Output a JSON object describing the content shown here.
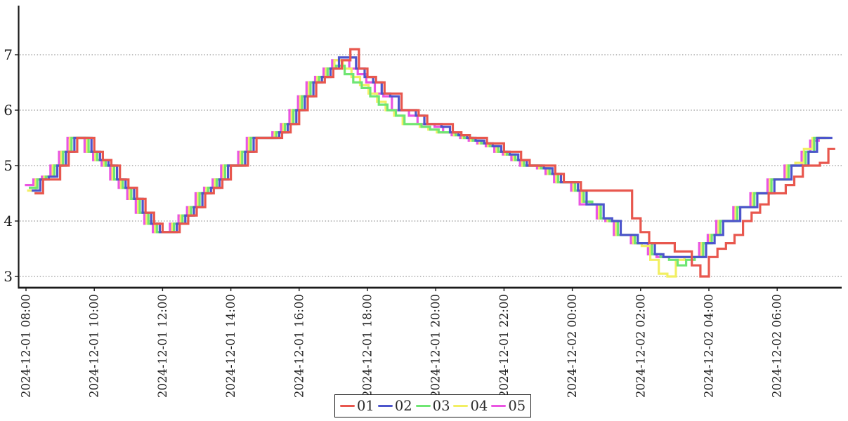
{
  "chart_data": {
    "type": "line",
    "subtype": "step",
    "title": "",
    "xlabel": "",
    "ylabel": "",
    "x_start": "2024-12-01 08:15",
    "x_step_minutes": 15,
    "x_end": "2024-12-02 07:30",
    "y_axis": {
      "ticks": [
        7,
        6,
        5,
        4,
        3
      ],
      "tick_labels": [
        "7",
        "6",
        "5",
        "4",
        "3"
      ],
      "range_shown": [
        2.8,
        7.9
      ],
      "gridlines": "dotted"
    },
    "x_axis": {
      "tick_interval_hours": 2,
      "tick_labels": [
        "2024-12-01 08:00",
        "2024-12-01 10:00",
        "2024-12-01 12:00",
        "2024-12-01 14:00",
        "2024-12-01 16:00",
        "2024-12-01 18:00",
        "2024-12-01 20:00",
        "2024-12-01 22:00",
        "2024-12-02 00:00",
        "2024-12-02 02:00",
        "2024-12-02 04:00",
        "2024-12-02 06:00"
      ],
      "label_rotation_deg": -90
    },
    "colors": {
      "grid": "#999999",
      "axis": "#1a1a1a",
      "background": "#ffffff",
      "tick_text": "#1a1a1a"
    },
    "legend": {
      "position": "bottom-center",
      "border": true,
      "entries": [
        {
          "label": "01",
          "color": "#e8574e"
        },
        {
          "label": "02",
          "color": "#4c55cc"
        },
        {
          "label": "03",
          "color": "#6fe673"
        },
        {
          "label": "04",
          "color": "#f2ef63"
        },
        {
          "label": "05",
          "color": "#ea55e2"
        }
      ]
    },
    "series": [
      {
        "name": "01",
        "color": "#e8574e",
        "offset_minutes": 0,
        "values": [
          4.5,
          4.75,
          4.75,
          5,
          5.25,
          5.5,
          5.5,
          5.25,
          5.1,
          5,
          4.75,
          4.6,
          4.4,
          4.15,
          3.95,
          3.8,
          3.8,
          3.95,
          4.1,
          4.25,
          4.5,
          4.6,
          4.75,
          5,
          5,
          5.25,
          5.5,
          5.5,
          5.5,
          5.6,
          5.75,
          6,
          6.25,
          6.5,
          6.6,
          6.75,
          6.9,
          7.1,
          6.75,
          6.6,
          6.5,
          6.3,
          6.3,
          6,
          6,
          5.9,
          5.75,
          5.75,
          5.75,
          5.6,
          5.55,
          5.5,
          5.5,
          5.4,
          5.4,
          5.25,
          5.25,
          5.1,
          5,
          5,
          5,
          4.85,
          4.7,
          4.7,
          4.55,
          4.55,
          4.55,
          4.55,
          4.55,
          4.55,
          4.05,
          3.8,
          3.6,
          3.6,
          3.6,
          3.45,
          3.45,
          3.2,
          3,
          3.35,
          3.5,
          3.6,
          3.75,
          4,
          4.15,
          4.3,
          4.5,
          4.5,
          4.65,
          4.8,
          5,
          5,
          5.05,
          5.3
        ]
      },
      {
        "name": "02",
        "color": "#4c55cc",
        "offset_minutes": -5,
        "values": [
          4.55,
          4.75,
          4.8,
          5,
          5.25,
          5.5,
          5.5,
          5.25,
          5.1,
          5,
          4.75,
          4.6,
          4.4,
          4.15,
          3.95,
          3.8,
          3.8,
          3.95,
          4.1,
          4.25,
          4.5,
          4.6,
          4.75,
          5,
          5,
          5.25,
          5.5,
          5.5,
          5.5,
          5.6,
          5.75,
          6,
          6.25,
          6.5,
          6.6,
          6.75,
          6.95,
          6.95,
          6.75,
          6.6,
          6.5,
          6.3,
          6.25,
          6,
          6,
          5.9,
          5.75,
          5.75,
          5.7,
          5.6,
          5.55,
          5.5,
          5.45,
          5.4,
          5.35,
          5.25,
          5.2,
          5.1,
          5,
          5,
          4.95,
          4.85,
          4.7,
          4.7,
          4.55,
          4.3,
          4.3,
          4.05,
          4,
          3.75,
          3.75,
          3.6,
          3.6,
          3.4,
          3.35,
          3.35,
          3.35,
          3.35,
          3.35,
          3.6,
          3.75,
          4,
          4,
          4.25,
          4.25,
          4.5,
          4.5,
          4.75,
          4.75,
          5,
          5,
          5.25,
          5.5,
          5.5
        ]
      },
      {
        "name": "03",
        "color": "#6fe673",
        "offset_minutes": -10,
        "values": [
          4.6,
          4.75,
          4.8,
          5,
          5.25,
          5.5,
          5.5,
          5.25,
          5.1,
          5,
          4.75,
          4.6,
          4.4,
          4.15,
          3.95,
          3.8,
          3.8,
          3.95,
          4.1,
          4.25,
          4.5,
          4.6,
          4.75,
          5,
          5,
          5.25,
          5.5,
          5.5,
          5.5,
          5.6,
          5.75,
          6,
          6.25,
          6.5,
          6.6,
          6.75,
          6.8,
          6.65,
          6.5,
          6.4,
          6.25,
          6.1,
          6,
          5.9,
          5.75,
          5.75,
          5.7,
          5.65,
          5.6,
          5.6,
          5.55,
          5.5,
          5.45,
          5.4,
          5.35,
          5.25,
          5.2,
          5.1,
          5,
          5,
          4.95,
          4.85,
          4.7,
          4.7,
          4.55,
          4.35,
          4.3,
          4.05,
          4,
          3.75,
          3.75,
          3.6,
          3.6,
          3.4,
          3.35,
          3.3,
          3.2,
          3.3,
          3.35,
          3.6,
          3.75,
          4,
          4,
          4.25,
          4.25,
          4.5,
          4.5,
          4.75,
          4.75,
          5,
          5,
          5.25,
          5.5,
          5.5
        ]
      },
      {
        "name": "04",
        "color": "#f2ef63",
        "offset_minutes": -13,
        "values": [
          4.55,
          4.75,
          4.8,
          5,
          5.25,
          5.5,
          5.5,
          5.25,
          5.1,
          5,
          4.75,
          4.6,
          4.4,
          4.15,
          3.95,
          3.8,
          3.8,
          3.95,
          4.1,
          4.25,
          4.5,
          4.6,
          4.75,
          5,
          5,
          5.25,
          5.5,
          5.5,
          5.5,
          5.6,
          5.75,
          6,
          6.25,
          6.5,
          6.6,
          6.75,
          6.9,
          6.75,
          6.6,
          6.45,
          6.3,
          6.15,
          6,
          5.9,
          5.75,
          5.75,
          5.7,
          5.65,
          5.6,
          5.6,
          5.55,
          5.5,
          5.45,
          5.4,
          5.35,
          5.25,
          5.2,
          5.1,
          5,
          5,
          4.95,
          4.85,
          4.7,
          4.7,
          4.55,
          4.35,
          4.3,
          4.05,
          4,
          3.75,
          3.75,
          3.6,
          3.55,
          3.3,
          3.05,
          3,
          3.3,
          3.35,
          3.35,
          3.6,
          3.75,
          4,
          4,
          4.25,
          4.25,
          4.5,
          4.5,
          4.75,
          4.75,
          5,
          5.05,
          5.3,
          5.5,
          5.5
        ]
      },
      {
        "name": "05",
        "color": "#ea55e2",
        "offset_minutes": -17,
        "values": [
          4.65,
          4.75,
          4.8,
          5,
          5.25,
          5.5,
          5.5,
          5.25,
          5.1,
          5,
          4.75,
          4.6,
          4.4,
          4.15,
          3.95,
          3.8,
          3.8,
          3.95,
          4.1,
          4.25,
          4.5,
          4.6,
          4.75,
          5,
          5,
          5.25,
          5.5,
          5.5,
          5.5,
          5.6,
          5.75,
          6,
          6.25,
          6.5,
          6.6,
          6.75,
          6.9,
          6.9,
          6.75,
          6.65,
          6.5,
          6.3,
          6.25,
          6,
          6,
          5.9,
          5.75,
          5.75,
          5.7,
          5.6,
          5.55,
          5.5,
          5.45,
          5.4,
          5.35,
          5.25,
          5.2,
          5.1,
          5,
          5,
          4.95,
          4.85,
          4.7,
          4.7,
          4.55,
          4.3,
          4.3,
          4.05,
          4,
          3.75,
          3.75,
          3.6,
          3.6,
          3.4,
          3.35,
          3.35,
          3.35,
          3.35,
          3.35,
          3.6,
          3.75,
          4,
          4,
          4.25,
          4.25,
          4.5,
          4.5,
          4.75,
          4.75,
          5,
          5,
          5.25,
          5.45,
          5.5
        ]
      }
    ]
  }
}
